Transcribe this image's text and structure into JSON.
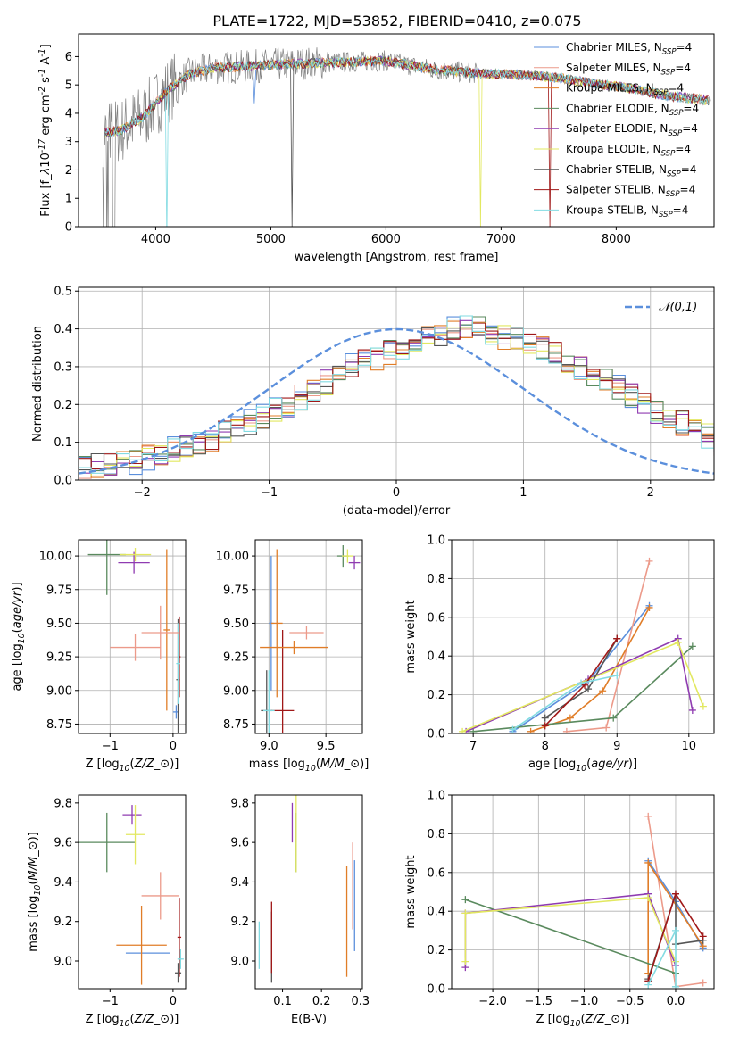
{
  "figure_title": "PLATE=1722, MJD=53852, FIBERID=0410, z=0.075",
  "legend_labels": [
    "Chabrier MILES, N$_{SSP}$=4",
    "Salpeter MILES, N$_{SSP}$=4",
    "Kroupa MILES, N$_{SSP}$=4",
    "Chabrier ELODIE, N$_{SSP}$=4",
    "Salpeter ELODIE, N$_{SSP}$=4",
    "Kroupa ELODIE, N$_{SSP}$=4",
    "Chabrier STELIB, N$_{SSP}$=4",
    "Salpeter STELIB, N$_{SSP}$=4",
    "Kroupa STELIB, N$_{SSP}$=4"
  ],
  "model_colors": [
    "#5b8fdc",
    "#ec9a8a",
    "#e07d28",
    "#5a8a5e",
    "#8f3bb1",
    "#e2e860",
    "#555555",
    "#a01818",
    "#82dbe2"
  ],
  "chart_data": [
    {
      "type": "line",
      "title": "PLATE=1722, MJD=53852, FIBERID=0410, z=0.075",
      "xlabel": "wavelength [Angstrom, rest frame]",
      "ylabel": "Flux [f$_\\lambda$10$^{-17}$ erg cm$^{-2}$ s$^{-1}$ A$^{-1}$]",
      "xlim": [
        3330,
        8850
      ],
      "ylim": [
        0,
        6.8
      ],
      "xticks": [
        4000,
        5000,
        6000,
        7000,
        8000
      ],
      "yticks": [
        0,
        1,
        2,
        3,
        4,
        5,
        6
      ],
      "legend": "upper right",
      "continuum_x": [
        3550,
        3700,
        3900,
        4100,
        4300,
        4500,
        4800,
        5200,
        5600,
        6000,
        6400,
        6800,
        7200,
        7500,
        7800,
        8100,
        8400,
        8800
      ],
      "continuum_y": [
        3.3,
        3.4,
        3.9,
        4.8,
        5.4,
        5.6,
        5.65,
        5.75,
        5.8,
        5.85,
        5.55,
        5.4,
        5.35,
        5.25,
        5.05,
        4.9,
        4.65,
        4.45
      ],
      "absorption_features": [
        {
          "x": 4102,
          "depth": 5.4,
          "series": "Kroupa STELIB"
        },
        {
          "x": 4860,
          "depth": 1.2,
          "series": "Chabrier MILES"
        },
        {
          "x": 5180,
          "depth": 5.8,
          "series": "Chabrier STELIB"
        },
        {
          "x": 6820,
          "depth": 5.4,
          "series": "Kroupa ELODIE"
        },
        {
          "x": 7420,
          "depth": 5.2,
          "series": "Salpeter STELIB"
        }
      ]
    },
    {
      "type": "bar",
      "xlabel": "(data-model)/error",
      "ylabel": "Normed distribution",
      "xlim": [
        -2.5,
        2.5
      ],
      "ylim": [
        0,
        0.51
      ],
      "xticks": [
        -2,
        -1,
        0,
        1,
        2
      ],
      "yticks": [
        0.0,
        0.1,
        0.2,
        0.3,
        0.4,
        0.5
      ],
      "grid": true,
      "legend": "upper right",
      "reference_curve": {
        "name": "$\\mathcal{N}(0,1)$",
        "mu": 0,
        "sigma": 1
      },
      "bin_width": 0.1,
      "bin_start": -2.5,
      "histogram_counts": [
        0.03,
        0.035,
        0.04,
        0.045,
        0.05,
        0.06,
        0.07,
        0.08,
        0.09,
        0.1,
        0.11,
        0.125,
        0.14,
        0.155,
        0.17,
        0.185,
        0.2,
        0.22,
        0.24,
        0.26,
        0.28,
        0.3,
        0.31,
        0.325,
        0.34,
        0.355,
        0.37,
        0.38,
        0.39,
        0.4,
        0.41,
        0.4,
        0.39,
        0.38,
        0.37,
        0.36,
        0.345,
        0.33,
        0.315,
        0.3,
        0.28,
        0.26,
        0.245,
        0.225,
        0.205,
        0.185,
        0.165,
        0.15,
        0.13,
        0.115,
        0.1
      ]
    },
    {
      "type": "scatter",
      "subtype": "errorbar",
      "xlabel": "Z [log$_{10}$($Z/Z_\\odot$)]",
      "ylabel": "age  [log$_{10}$($age/yr$)]",
      "xlim": [
        -1.5,
        0.2
      ],
      "ylim": [
        8.68,
        10.12
      ],
      "xticks": [
        -1,
        0
      ],
      "yticks": [
        8.75,
        9.0,
        9.25,
        9.5,
        9.75,
        10.0
      ],
      "grid": true,
      "points": [
        {
          "series": 0,
          "x": 0.05,
          "y": 8.84,
          "xerr": 0.05,
          "yerr": 0.05
        },
        {
          "series": 1,
          "x": -0.6,
          "y": 9.32,
          "xerr": 0.4,
          "yerr": 0.1
        },
        {
          "series": 2,
          "x": -0.1,
          "y": 9.45,
          "xerr": 0.05,
          "yerr": 0.6
        },
        {
          "series": 3,
          "x": -1.05,
          "y": 10.01,
          "xerr": 0.3,
          "yerr": 0.3
        },
        {
          "series": 4,
          "x": -0.62,
          "y": 9.95,
          "xerr": 0.25,
          "yerr": 0.08
        },
        {
          "series": 5,
          "x": -0.6,
          "y": 10.01,
          "xerr": 0.25,
          "yerr": 0.05
        },
        {
          "series": 6,
          "x": 0.08,
          "y": 9.08,
          "xerr": 0.03,
          "yerr": 0.45
        },
        {
          "series": 7,
          "x": 0.1,
          "y": 9.25,
          "xerr": 0.02,
          "yerr": 0.3
        },
        {
          "series": 8,
          "x": 0.08,
          "y": 9.2,
          "xerr": 0.03,
          "yerr": 0.3
        },
        {
          "series": 1,
          "x": -0.2,
          "y": 9.43,
          "xerr": 0.3,
          "yerr": 0.2
        }
      ]
    },
    {
      "type": "scatter",
      "subtype": "errorbar",
      "xlabel": "mass [log$_{10}$($M/M_\\odot$)]",
      "ylabel": "",
      "xlim": [
        8.88,
        9.82
      ],
      "ylim": [
        8.68,
        10.12
      ],
      "xticks": [
        9.0,
        9.5
      ],
      "yticks": [
        8.75,
        9.0,
        9.25,
        9.5,
        9.75,
        10.0
      ],
      "grid": true,
      "points": [
        {
          "series": 0,
          "x": 9.02,
          "y": 9.5,
          "xerr": 0.02,
          "yerr": 0.5
        },
        {
          "series": 1,
          "x": 9.33,
          "y": 9.43,
          "xerr": 0.15,
          "yerr": 0.05
        },
        {
          "series": 2,
          "x": 9.07,
          "y": 9.5,
          "xerr": 0.05,
          "yerr": 0.55
        },
        {
          "series": 3,
          "x": 9.65,
          "y": 10.0,
          "xerr": 0.05,
          "yerr": 0.08
        },
        {
          "series": 4,
          "x": 9.75,
          "y": 9.95,
          "xerr": 0.05,
          "yerr": 0.05
        },
        {
          "series": 5,
          "x": 9.69,
          "y": 10.0,
          "xerr": 0.05,
          "yerr": 0.05
        },
        {
          "series": 6,
          "x": 8.98,
          "y": 8.85,
          "xerr": 0.05,
          "yerr": 0.3
        },
        {
          "series": 7,
          "x": 9.12,
          "y": 8.85,
          "xerr": 0.1,
          "yerr": 0.6
        },
        {
          "series": 8,
          "x": 9.0,
          "y": 8.85,
          "xerr": 0.05,
          "yerr": 0.3
        },
        {
          "series": 2,
          "x": 9.22,
          "y": 9.32,
          "xerr": 0.3,
          "yerr": 0.05
        }
      ]
    },
    {
      "type": "line",
      "xlabel": "age  [log$_{10}$($age/yr$)]",
      "ylabel": "mass weight",
      "xlim": [
        6.7,
        10.35
      ],
      "ylim": [
        0,
        1.0
      ],
      "xticks": [
        7,
        8,
        9,
        10
      ],
      "yticks": [
        0.0,
        0.2,
        0.4,
        0.6,
        0.8,
        1.0
      ],
      "grid": true,
      "series": [
        {
          "x": [
            7.55,
            8.6,
            9.45
          ],
          "y": [
            0.01,
            0.27,
            0.66
          ]
        },
        {
          "x": [
            8.3,
            8.85,
            9.45
          ],
          "y": [
            0.01,
            0.03,
            0.89
          ]
        },
        {
          "x": [
            7.8,
            8.35,
            8.8,
            9.45
          ],
          "y": [
            0.01,
            0.08,
            0.22,
            0.65
          ]
        },
        {
          "x": [
            7.0,
            8.95,
            10.05
          ],
          "y": [
            0.01,
            0.08,
            0.45
          ]
        },
        {
          "x": [
            6.9,
            8.6,
            9.85,
            10.05
          ],
          "y": [
            0.01,
            0.28,
            0.49,
            0.12
          ]
        },
        {
          "x": [
            6.85,
            9.85,
            10.2
          ],
          "y": [
            0.01,
            0.47,
            0.14
          ]
        },
        {
          "x": [
            8.0,
            8.6,
            9.0
          ],
          "y": [
            0.08,
            0.23,
            0.49
          ]
        },
        {
          "x": [
            8.0,
            8.55,
            9.0
          ],
          "y": [
            0.04,
            0.25,
            0.49
          ]
        },
        {
          "x": [
            7.55,
            8.5,
            9.0
          ],
          "y": [
            0.02,
            0.26,
            0.3
          ]
        }
      ]
    },
    {
      "type": "scatter",
      "subtype": "errorbar",
      "xlabel": "Z [log$_{10}$($Z/Z_\\odot$)]",
      "ylabel": "mass [log$_{10}$($M/M_\\odot$)]",
      "xlim": [
        -1.5,
        0.2
      ],
      "ylim": [
        8.86,
        9.84
      ],
      "xticks": [
        -1,
        0
      ],
      "yticks": [
        9.0,
        9.2,
        9.4,
        9.6,
        9.8
      ],
      "grid": false,
      "points": [
        {
          "series": 0,
          "x": -0.4,
          "y": 9.04,
          "xerr": 0.35,
          "yerr": 0.0
        },
        {
          "series": 1,
          "x": -0.2,
          "y": 9.33,
          "xerr": 0.3,
          "yerr": 0.12
        },
        {
          "series": 2,
          "x": -0.5,
          "y": 9.08,
          "xerr": 0.4,
          "yerr": 0.2
        },
        {
          "series": 3,
          "x": -1.05,
          "y": 9.6,
          "xerr": 0.45,
          "yerr": 0.15
        },
        {
          "series": 4,
          "x": -0.65,
          "y": 9.74,
          "xerr": 0.15,
          "yerr": 0.05
        },
        {
          "series": 5,
          "x": -0.6,
          "y": 9.64,
          "xerr": 0.15,
          "yerr": 0.15
        },
        {
          "series": 6,
          "x": 0.08,
          "y": 8.94,
          "xerr": 0.05,
          "yerr": 0.05
        },
        {
          "series": 7,
          "x": 0.1,
          "y": 9.12,
          "xerr": 0.03,
          "yerr": 0.2
        },
        {
          "series": 8,
          "x": 0.12,
          "y": 9.01,
          "xerr": 0.05,
          "yerr": 0.05
        }
      ]
    },
    {
      "type": "scatter",
      "subtype": "errorbar",
      "xlabel": "E(B-V)",
      "ylabel": "",
      "xlim": [
        0.03,
        0.305
      ],
      "ylim": [
        8.86,
        9.84
      ],
      "xticks": [
        0.1,
        0.2,
        0.3
      ],
      "yticks": [
        9.0,
        9.2,
        9.4,
        9.6,
        9.8
      ],
      "grid": false,
      "points": [
        {
          "series": 0,
          "x": 0.285,
          "y": 9.28,
          "xerr": 0.0,
          "yerr": 0.23
        },
        {
          "series": 1,
          "x": 0.28,
          "y": 9.38,
          "xerr": 0.0,
          "yerr": 0.22
        },
        {
          "series": 2,
          "x": 0.265,
          "y": 9.2,
          "xerr": 0.0,
          "yerr": 0.28
        },
        {
          "series": 3,
          "x": 0.135,
          "y": 9.6,
          "xerr": 0.0,
          "yerr": 0.15
        },
        {
          "series": 4,
          "x": 0.125,
          "y": 9.7,
          "xerr": 0.0,
          "yerr": 0.1
        },
        {
          "series": 5,
          "x": 0.135,
          "y": 9.65,
          "xerr": 0.0,
          "yerr": 0.2
        },
        {
          "series": 6,
          "x": 0.072,
          "y": 9.07,
          "xerr": 0.0,
          "yerr": 0.18
        },
        {
          "series": 7,
          "x": 0.072,
          "y": 9.12,
          "xerr": 0.0,
          "yerr": 0.18
        },
        {
          "series": 8,
          "x": 0.04,
          "y": 9.08,
          "xerr": 0.0,
          "yerr": 0.12
        }
      ]
    },
    {
      "type": "line",
      "xlabel": "Z [log$_{10}$($Z/Z_\\odot$)]",
      "ylabel": "mass weight",
      "xlim": [
        -2.45,
        0.42
      ],
      "ylim": [
        0,
        1.0
      ],
      "xticks": [
        -2.0,
        -1.5,
        -1.0,
        -0.5,
        0.0
      ],
      "yticks": [
        0.0,
        0.2,
        0.4,
        0.6,
        0.8,
        1.0
      ],
      "grid": true,
      "series": [
        {
          "x": [
            -0.3,
            0.0,
            0.3
          ],
          "y": [
            0.66,
            0.45,
            0.21
          ]
        },
        {
          "x": [
            -0.3,
            0.0,
            0.3
          ],
          "y": [
            0.89,
            0.01,
            0.03
          ]
        },
        {
          "x": [
            -0.3,
            -0.3,
            0.3
          ],
          "y": [
            0.08,
            0.65,
            0.22
          ]
        },
        {
          "x": [
            -2.3,
            0.0
          ],
          "y": [
            0.46,
            0.08
          ]
        },
        {
          "x": [
            -2.3,
            -2.3,
            -0.3,
            0.0
          ],
          "y": [
            0.11,
            0.39,
            0.49,
            0.12
          ]
        },
        {
          "x": [
            -2.3,
            -2.3,
            -0.3,
            0.0
          ],
          "y": [
            0.14,
            0.39,
            0.47,
            0.14
          ]
        },
        {
          "x": [
            -0.3,
            0.0,
            0.0,
            0.3
          ],
          "y": [
            0.05,
            0.49,
            0.23,
            0.25
          ]
        },
        {
          "x": [
            -0.3,
            0.0,
            0.3
          ],
          "y": [
            0.04,
            0.49,
            0.27
          ]
        },
        {
          "x": [
            -0.3,
            0.0,
            0.0
          ],
          "y": [
            0.02,
            0.3,
            0.01
          ]
        }
      ]
    }
  ]
}
